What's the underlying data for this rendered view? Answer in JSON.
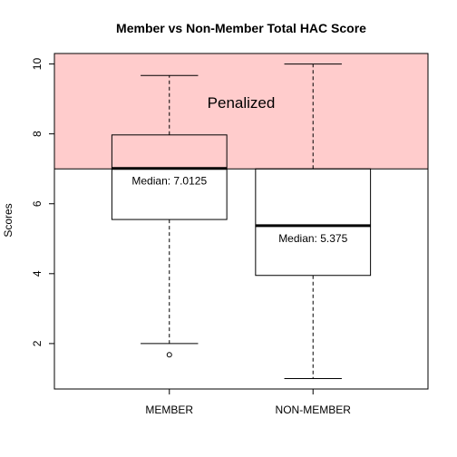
{
  "chart_data": {
    "type": "box",
    "title": "Member vs Non-Member Total HAC Score",
    "xlabel": "",
    "ylabel": "Scores",
    "ylim": [
      0.7,
      10.3
    ],
    "yticks": [
      2,
      4,
      6,
      8,
      10
    ],
    "categories": [
      "MEMBER",
      "NON-MEMBER"
    ],
    "boxes": [
      {
        "name": "MEMBER",
        "whisker_low": 2.0,
        "q1": 5.55,
        "median": 7.0125,
        "q3": 7.97,
        "whisker_high": 9.67,
        "outliers": [
          1.68
        ],
        "median_label": "Median:  7.0125"
      },
      {
        "name": "NON-MEMBER",
        "whisker_low": 1.0,
        "q1": 3.95,
        "median": 5.375,
        "q3": 7.0,
        "whisker_high": 10.0,
        "outliers": [],
        "median_label": "Median:  5.375"
      }
    ],
    "shaded_region": {
      "y_from": 7.0,
      "y_to": 10.3,
      "label": "Penalized",
      "color": "#ffcccc"
    },
    "grid": false,
    "legend": "none"
  },
  "colors": {
    "shade": "#ffcccc",
    "box_stroke": "#000000",
    "box_fill": "none",
    "median_line": "#000000"
  }
}
